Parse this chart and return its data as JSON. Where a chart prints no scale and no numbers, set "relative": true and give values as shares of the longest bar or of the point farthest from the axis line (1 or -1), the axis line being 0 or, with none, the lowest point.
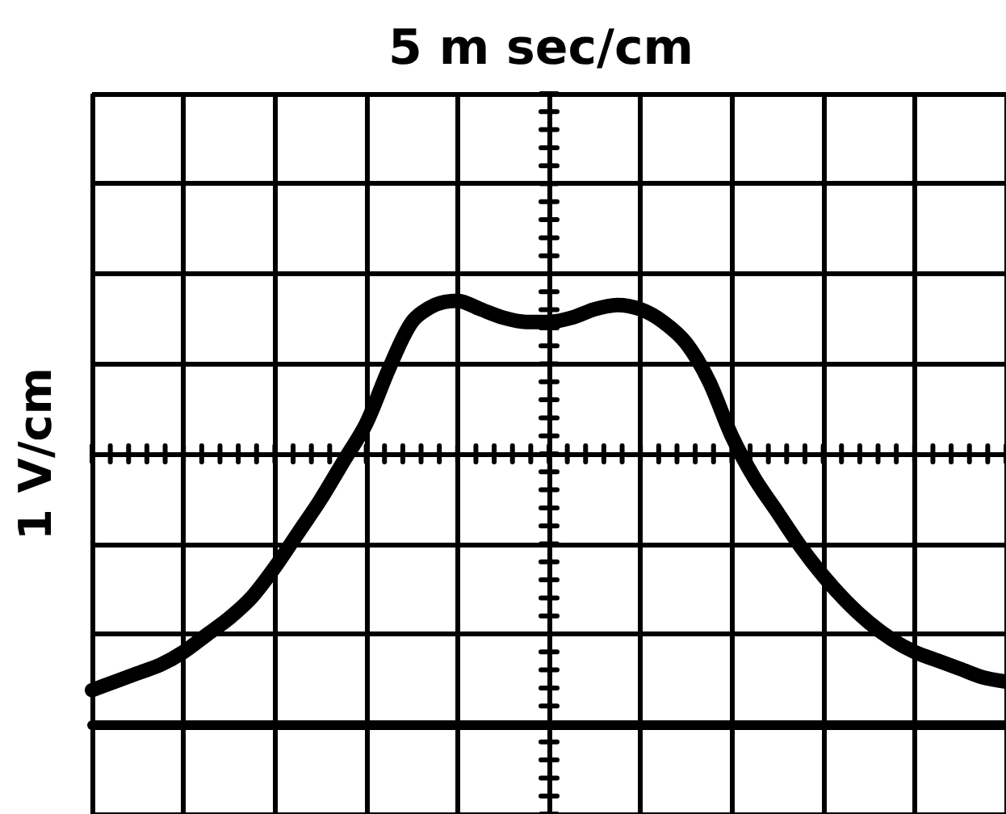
{
  "chart_data": {
    "type": "line",
    "xlabel": "5 m sec/cm",
    "ylabel": "1 V/cm",
    "relative": true,
    "grid": true,
    "marker": "none",
    "line_style": "solid",
    "color": "#000000",
    "categories": [
      null,
      null,
      null,
      null,
      null,
      null,
      null,
      null,
      null,
      null,
      null,
      null,
      null,
      null,
      null,
      null,
      null,
      null,
      null,
      null,
      null,
      null,
      null,
      null,
      null,
      null,
      null,
      null,
      null,
      null,
      null,
      null,
      null,
      null,
      null,
      null,
      null,
      null,
      null,
      null,
      null
    ],
    "values": [
      0.08,
      0.1,
      0.12,
      0.14,
      0.17,
      0.21,
      0.25,
      0.3,
      0.37,
      0.45,
      0.53,
      0.62,
      0.71,
      0.84,
      0.95,
      0.99,
      1,
      0.98,
      0.96,
      0.95,
      0.95,
      0.96,
      0.98,
      0.99,
      0.98,
      0.95,
      0.9,
      0.81,
      0.68,
      0.58,
      0.5,
      0.42,
      0.35,
      0.29,
      0.24,
      0.2,
      0.17,
      0.15,
      0.13,
      0.11,
      0.1
    ]
  }
}
